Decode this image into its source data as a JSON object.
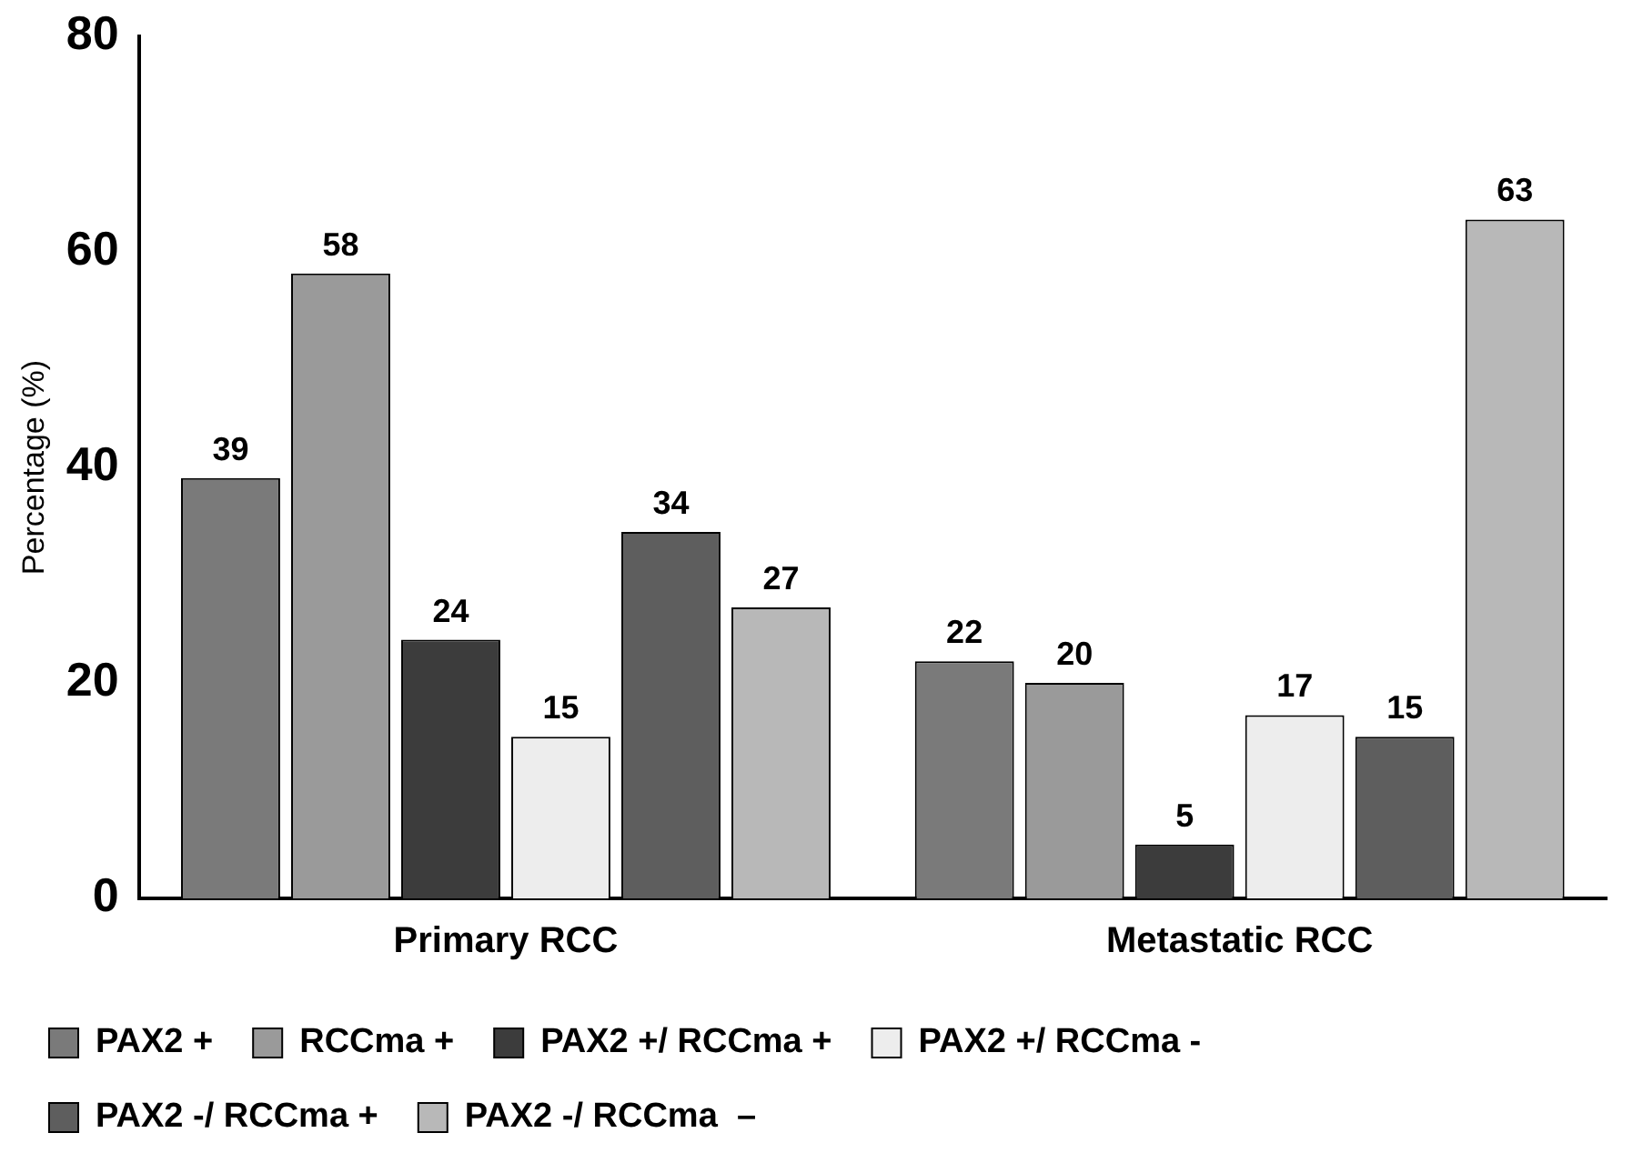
{
  "chart_data": {
    "type": "bar",
    "ylabel": "Percentage (%)",
    "categories": [
      "Primary RCC",
      "Metastatic RCC"
    ],
    "series": [
      {
        "name": "PAX2 +",
        "color": "#7a7a7a",
        "values": [
          39,
          22
        ]
      },
      {
        "name": "RCCma +",
        "color": "#9a9a9a",
        "values": [
          58,
          20
        ]
      },
      {
        "name": "PAX2 +/ RCCma +",
        "color": "#3c3c3c",
        "values": [
          24,
          5
        ]
      },
      {
        "name": "PAX2 +/ RCCma -",
        "color": "#ededed",
        "values": [
          15,
          17
        ]
      },
      {
        "name": "PAX2 -/ RCCma +",
        "color": "#5e5e5e",
        "values": [
          34,
          15
        ]
      },
      {
        "name": "PAX2 -/ RCCma  –",
        "color": "#b8b8b8",
        "values": [
          27,
          63
        ]
      }
    ],
    "ylim": [
      0,
      80
    ],
    "yticks": [
      0,
      20,
      40,
      60,
      80
    ],
    "grid": false,
    "legend": "bottom",
    "data_labels": true
  }
}
